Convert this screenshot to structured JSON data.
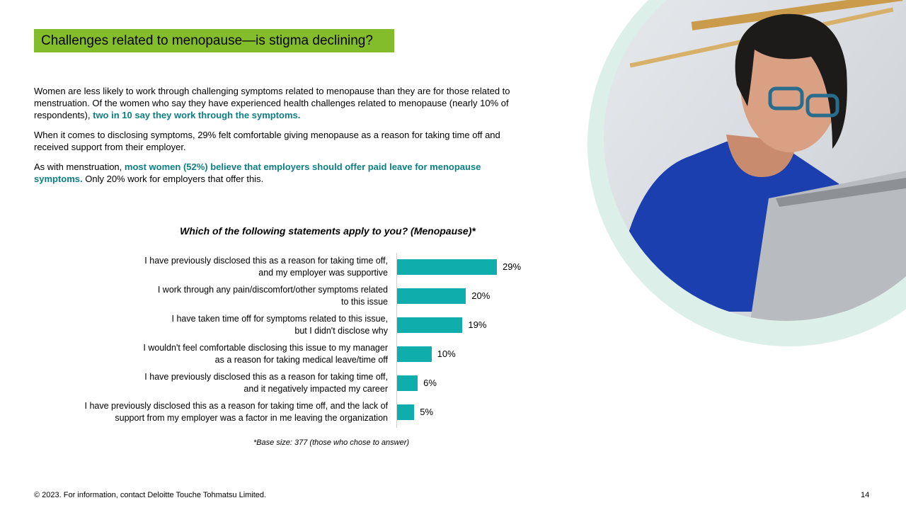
{
  "header": {
    "title": "Challenges related to menopause—is stigma declining?"
  },
  "body": {
    "paragraphs": [
      [
        {
          "text": "Women are less likely to work through challenging symptoms related to menopause than they are for those related to menstruation. Of the women who say they have experienced health challenges related to menopause (nearly 10% of respondents), ",
          "highlight": false
        },
        {
          "text": "two in 10 say they work through the symptoms.",
          "highlight": true
        }
      ],
      [
        {
          "text": "When it comes to disclosing symptoms, 29% felt comfortable giving menopause as a reason for taking time off and received support from their employer.",
          "highlight": false
        }
      ],
      [
        {
          "text": "As with menstruation, ",
          "highlight": false
        },
        {
          "text": "most women (52%) believe that employers should offer paid leave for menopause symptoms.",
          "highlight": true
        },
        {
          "text": " Only 20% work for employers that offer this.",
          "highlight": false
        }
      ]
    ]
  },
  "chart_data": {
    "type": "bar",
    "orientation": "horizontal",
    "title": "Which of the following statements apply to you? (Menopause)*",
    "categories": [
      "I have previously disclosed this as a reason for taking time off,\nand my employer was supportive",
      "I work through any pain/discomfort/other symptoms related\nto this issue",
      "I have taken time off for symptoms related to this issue,\nbut I didn't disclose why",
      "I wouldn't feel comfortable disclosing this issue to my manager\nas a reason for taking medical leave/time off",
      "I have previously disclosed this as a reason for taking time off,\nand it negatively impacted my career",
      "I have previously disclosed this as a reason for taking time off, and the lack of\nsupport from my employer was a factor in me leaving the organization"
    ],
    "values": [
      29,
      20,
      19,
      10,
      6,
      5
    ],
    "value_labels": [
      "29%",
      "20%",
      "19%",
      "10%",
      "6%",
      "5%"
    ],
    "color": "#0fadab",
    "note": "*Base size: 377 (those who chose to answer)"
  },
  "footer": {
    "copyright": "© 2023. For information, contact Deloitte Touche Tohmatsu Limited.",
    "page_number": "14"
  }
}
